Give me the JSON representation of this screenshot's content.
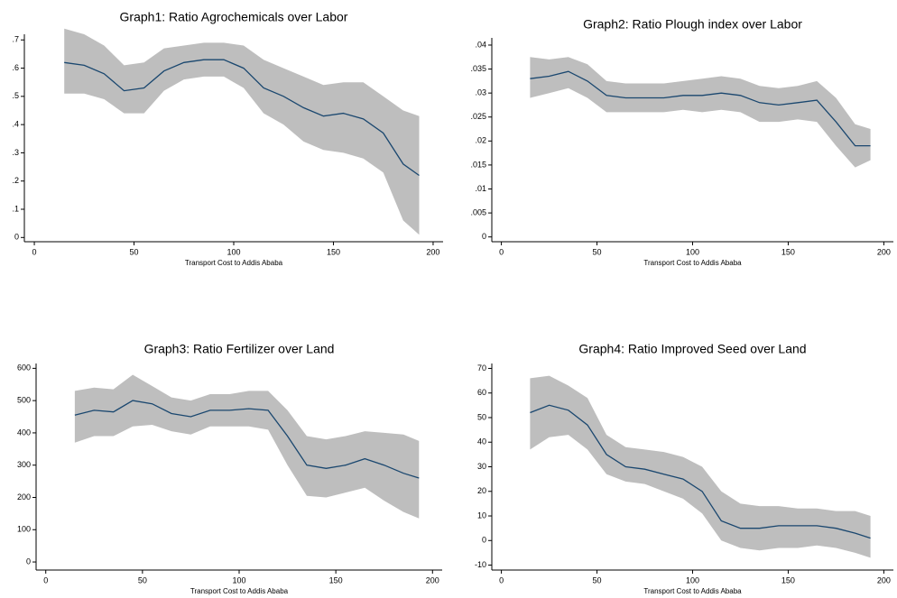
{
  "chart_data": [
    {
      "type": "line",
      "title": "Graph1: Ratio Agrochemicals over Labor",
      "xlabel": "Transport Cost to Addis Ababa",
      "x": [
        15,
        25,
        35,
        45,
        55,
        65,
        75,
        85,
        95,
        105,
        115,
        125,
        135,
        145,
        155,
        165,
        175,
        185,
        193
      ],
      "values": [
        0.62,
        0.61,
        0.58,
        0.52,
        0.53,
        0.59,
        0.62,
        0.63,
        0.63,
        0.6,
        0.53,
        0.5,
        0.46,
        0.43,
        0.44,
        0.42,
        0.37,
        0.26,
        0.22
      ],
      "ci_high": [
        0.74,
        0.72,
        0.68,
        0.61,
        0.62,
        0.67,
        0.68,
        0.69,
        0.69,
        0.68,
        0.63,
        0.6,
        0.57,
        0.54,
        0.55,
        0.55,
        0.5,
        0.45,
        0.43
      ],
      "ci_low": [
        0.51,
        0.51,
        0.49,
        0.44,
        0.44,
        0.52,
        0.56,
        0.57,
        0.57,
        0.53,
        0.44,
        0.4,
        0.34,
        0.31,
        0.3,
        0.28,
        0.23,
        0.06,
        0.01
      ],
      "color": "#1a476f",
      "band_color": "#bebebe",
      "xlim": [
        -5,
        205
      ],
      "xticks": [
        0,
        50,
        100,
        150,
        200
      ],
      "ylim": [
        -0.015,
        0.72
      ],
      "yticks": [
        0,
        {
          "value": 0.1,
          "label": ".1"
        },
        {
          "value": 0.2,
          "label": ".2"
        },
        {
          "value": 0.3,
          "label": ".3"
        },
        {
          "value": 0.4,
          "label": ".4"
        },
        {
          "value": 0.5,
          "label": ".5"
        },
        {
          "value": 0.6,
          "label": ".6"
        },
        {
          "value": 0.7,
          "label": ".7"
        }
      ]
    },
    {
      "type": "line",
      "title": "Graph2: Ratio Plough index over Labor",
      "xlabel": "Transport Cost to Addis Ababa",
      "x": [
        15,
        25,
        35,
        45,
        55,
        65,
        75,
        85,
        95,
        105,
        115,
        125,
        135,
        145,
        155,
        165,
        175,
        185,
        193
      ],
      "values": [
        0.033,
        0.0335,
        0.0345,
        0.0325,
        0.0295,
        0.029,
        0.029,
        0.029,
        0.0295,
        0.0295,
        0.03,
        0.0295,
        0.028,
        0.0275,
        0.028,
        0.0285,
        0.024,
        0.019,
        0.019
      ],
      "ci_high": [
        0.0375,
        0.037,
        0.0375,
        0.036,
        0.0325,
        0.032,
        0.032,
        0.032,
        0.0325,
        0.033,
        0.0335,
        0.033,
        0.0315,
        0.031,
        0.0315,
        0.0325,
        0.029,
        0.0235,
        0.0225
      ],
      "ci_low": [
        0.029,
        0.03,
        0.031,
        0.029,
        0.026,
        0.026,
        0.026,
        0.026,
        0.0265,
        0.026,
        0.0265,
        0.026,
        0.024,
        0.024,
        0.0245,
        0.024,
        0.019,
        0.0145,
        0.016
      ],
      "color": "#1a476f",
      "band_color": "#bebebe",
      "xlim": [
        -5,
        205
      ],
      "xticks": [
        0,
        50,
        100,
        150,
        200
      ],
      "ylim": [
        -0.001,
        0.0415
      ],
      "yticks": [
        0,
        {
          "value": 0.005,
          "label": ".005"
        },
        {
          "value": 0.01,
          "label": ".01"
        },
        {
          "value": 0.015,
          "label": ".015"
        },
        {
          "value": 0.02,
          "label": ".02"
        },
        {
          "value": 0.025,
          "label": ".025"
        },
        {
          "value": 0.03,
          "label": ".03"
        },
        {
          "value": 0.035,
          "label": ".035"
        },
        {
          "value": 0.04,
          "label": ".04"
        }
      ]
    },
    {
      "type": "line",
      "title": "Graph3: Ratio Fertilizer over Land",
      "xlabel": "Transport Cost to Addis Ababa",
      "x": [
        15,
        25,
        35,
        45,
        55,
        65,
        75,
        85,
        95,
        105,
        115,
        125,
        135,
        145,
        155,
        165,
        175,
        185,
        193
      ],
      "values": [
        455,
        470,
        465,
        500,
        490,
        460,
        450,
        470,
        470,
        475,
        470,
        390,
        300,
        290,
        300,
        320,
        300,
        275,
        260
      ],
      "ci_high": [
        530,
        540,
        535,
        580,
        545,
        510,
        500,
        520,
        520,
        530,
        530,
        470,
        390,
        380,
        390,
        405,
        400,
        395,
        375
      ],
      "ci_low": [
        370,
        390,
        390,
        420,
        425,
        405,
        395,
        420,
        420,
        420,
        410,
        300,
        205,
        200,
        215,
        230,
        190,
        155,
        135
      ],
      "color": "#1a476f",
      "band_color": "#bebebe",
      "xlim": [
        -5,
        205
      ],
      "xticks": [
        0,
        50,
        100,
        150,
        200
      ],
      "ylim": [
        -25,
        615
      ],
      "yticks": [
        0,
        100,
        200,
        300,
        400,
        500,
        600
      ]
    },
    {
      "type": "line",
      "title": "Graph4: Ratio Improved Seed over Land",
      "xlabel": "Transport Cost to Addis Ababa",
      "x": [
        15,
        25,
        35,
        45,
        55,
        65,
        75,
        85,
        95,
        105,
        115,
        125,
        135,
        145,
        155,
        165,
        175,
        185,
        193
      ],
      "values": [
        52,
        55,
        53,
        47,
        35,
        30,
        29,
        27,
        25,
        20,
        8,
        5,
        5,
        6,
        6,
        6,
        5,
        3,
        1
      ],
      "ci_high": [
        66,
        67,
        63,
        58,
        43,
        38,
        37,
        36,
        34,
        30,
        20,
        15,
        14,
        14,
        13,
        13,
        12,
        12,
        10
      ],
      "ci_low": [
        37,
        42,
        43,
        37,
        27,
        24,
        23,
        20,
        17,
        11,
        0,
        -3,
        -4,
        -3,
        -3,
        -2,
        -3,
        -5,
        -7
      ],
      "color": "#1a476f",
      "band_color": "#bebebe",
      "xlim": [
        -5,
        205
      ],
      "xticks": [
        0,
        50,
        100,
        150,
        200
      ],
      "ylim": [
        -12,
        72
      ],
      "yticks": [
        -10,
        0,
        10,
        20,
        30,
        40,
        50,
        60,
        70
      ]
    }
  ]
}
